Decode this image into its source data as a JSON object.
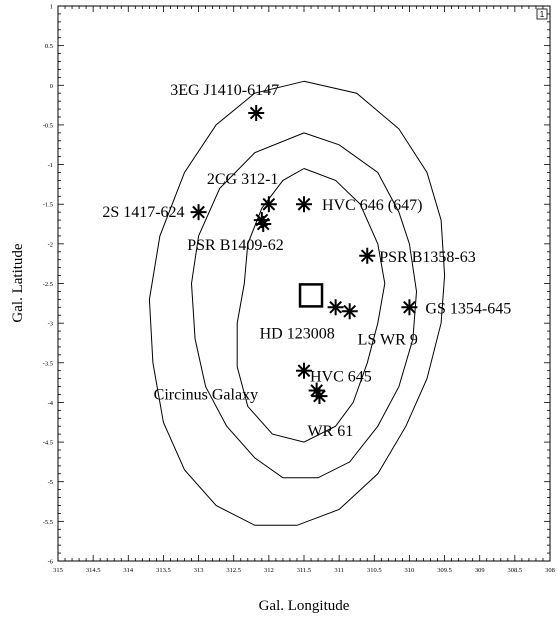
{
  "chart_data": {
    "type": "scatter",
    "title": "",
    "xlabel": "Gal. Longitude",
    "ylabel": "Gal. Latitude",
    "xlim": [
      315,
      308
    ],
    "ylim": [
      -6,
      1
    ],
    "x_reversed": true,
    "x_ticks": [
      "315",
      "314.5",
      "314",
      "313.5",
      "313",
      "312.5",
      "312",
      "311.5",
      "311",
      "310.5",
      "310",
      "309.5",
      "309",
      "308.5",
      "308"
    ],
    "y_ticks": [
      "1",
      "0.5",
      "0",
      "-0.5",
      "-1",
      "-1.5",
      "-2",
      "-2.5",
      "-3",
      "-3.5",
      "-4",
      "-4.5",
      "-5",
      "-5.5",
      "-6"
    ],
    "panel_label": "1",
    "error_box": {
      "x": 311.4,
      "y": -2.65
    },
    "sources": [
      {
        "name": "3EG J1410-6147",
        "x": 312.18,
        "y": -0.35
      },
      {
        "name": "2CG 312-1",
        "x": 312.0,
        "y": -1.5
      },
      {
        "name": "",
        "x": 312.1,
        "y": -1.7
      },
      {
        "name": "2S 1417-624",
        "x": 313.0,
        "y": -1.6
      },
      {
        "name": "HVC 646 (647)",
        "x": 311.5,
        "y": -1.5
      },
      {
        "name": "PSR B1409-62",
        "x": 312.08,
        "y": -1.75
      },
      {
        "name": "PSR B1358-63",
        "x": 310.6,
        "y": -2.15
      },
      {
        "name": "GS 1354-645",
        "x": 310.0,
        "y": -2.8
      },
      {
        "name": "HD 123008",
        "x": 311.05,
        "y": -2.8
      },
      {
        "name": "LS WR 9",
        "x": 310.85,
        "y": -2.85
      },
      {
        "name": "HVC 645",
        "x": 311.5,
        "y": -3.6
      },
      {
        "name": "Circinus Galaxy",
        "x": 311.32,
        "y": -3.85
      },
      {
        "name": "WR 61",
        "x": 311.28,
        "y": -3.92
      }
    ],
    "contours": [
      [
        [
          311.5,
          -1.05
        ],
        [
          311.05,
          -1.2
        ],
        [
          310.7,
          -1.5
        ],
        [
          310.45,
          -2.0
        ],
        [
          310.35,
          -2.5
        ],
        [
          310.45,
          -3.0
        ],
        [
          310.6,
          -3.5
        ],
        [
          310.8,
          -4.0
        ],
        [
          311.05,
          -4.3
        ],
        [
          311.5,
          -4.5
        ],
        [
          311.95,
          -4.4
        ],
        [
          312.3,
          -4.05
        ],
        [
          312.45,
          -3.55
        ],
        [
          312.45,
          -3.0
        ],
        [
          312.35,
          -2.5
        ],
        [
          312.3,
          -2.0
        ],
        [
          312.1,
          -1.55
        ],
        [
          311.8,
          -1.2
        ],
        [
          311.5,
          -1.05
        ]
      ],
      [
        [
          311.5,
          -0.6
        ],
        [
          311.0,
          -0.75
        ],
        [
          310.45,
          -1.1
        ],
        [
          310.15,
          -1.6
        ],
        [
          310.0,
          -2.0
        ],
        [
          309.9,
          -2.6
        ],
        [
          309.95,
          -3.2
        ],
        [
          310.15,
          -3.8
        ],
        [
          310.45,
          -4.3
        ],
        [
          310.85,
          -4.75
        ],
        [
          311.3,
          -4.95
        ],
        [
          311.8,
          -4.95
        ],
        [
          312.2,
          -4.7
        ],
        [
          312.6,
          -4.3
        ],
        [
          312.9,
          -3.8
        ],
        [
          313.05,
          -3.2
        ],
        [
          313.1,
          -2.5
        ],
        [
          313.0,
          -1.9
        ],
        [
          312.7,
          -1.3
        ],
        [
          312.2,
          -0.85
        ],
        [
          311.5,
          -0.6
        ]
      ],
      [
        [
          311.5,
          0.05
        ],
        [
          310.75,
          -0.1
        ],
        [
          310.15,
          -0.55
        ],
        [
          309.75,
          -1.1
        ],
        [
          309.55,
          -1.7
        ],
        [
          309.5,
          -2.4
        ],
        [
          309.55,
          -3.0
        ],
        [
          309.75,
          -3.7
        ],
        [
          310.05,
          -4.3
        ],
        [
          310.45,
          -4.9
        ],
        [
          311.0,
          -5.35
        ],
        [
          311.6,
          -5.55
        ],
        [
          312.2,
          -5.55
        ],
        [
          312.75,
          -5.3
        ],
        [
          313.2,
          -4.85
        ],
        [
          313.5,
          -4.25
        ],
        [
          313.65,
          -3.5
        ],
        [
          313.7,
          -2.7
        ],
        [
          313.55,
          -1.9
        ],
        [
          313.2,
          -1.1
        ],
        [
          312.75,
          -0.5
        ],
        [
          312.2,
          -0.1
        ],
        [
          311.5,
          0.05
        ]
      ]
    ]
  }
}
